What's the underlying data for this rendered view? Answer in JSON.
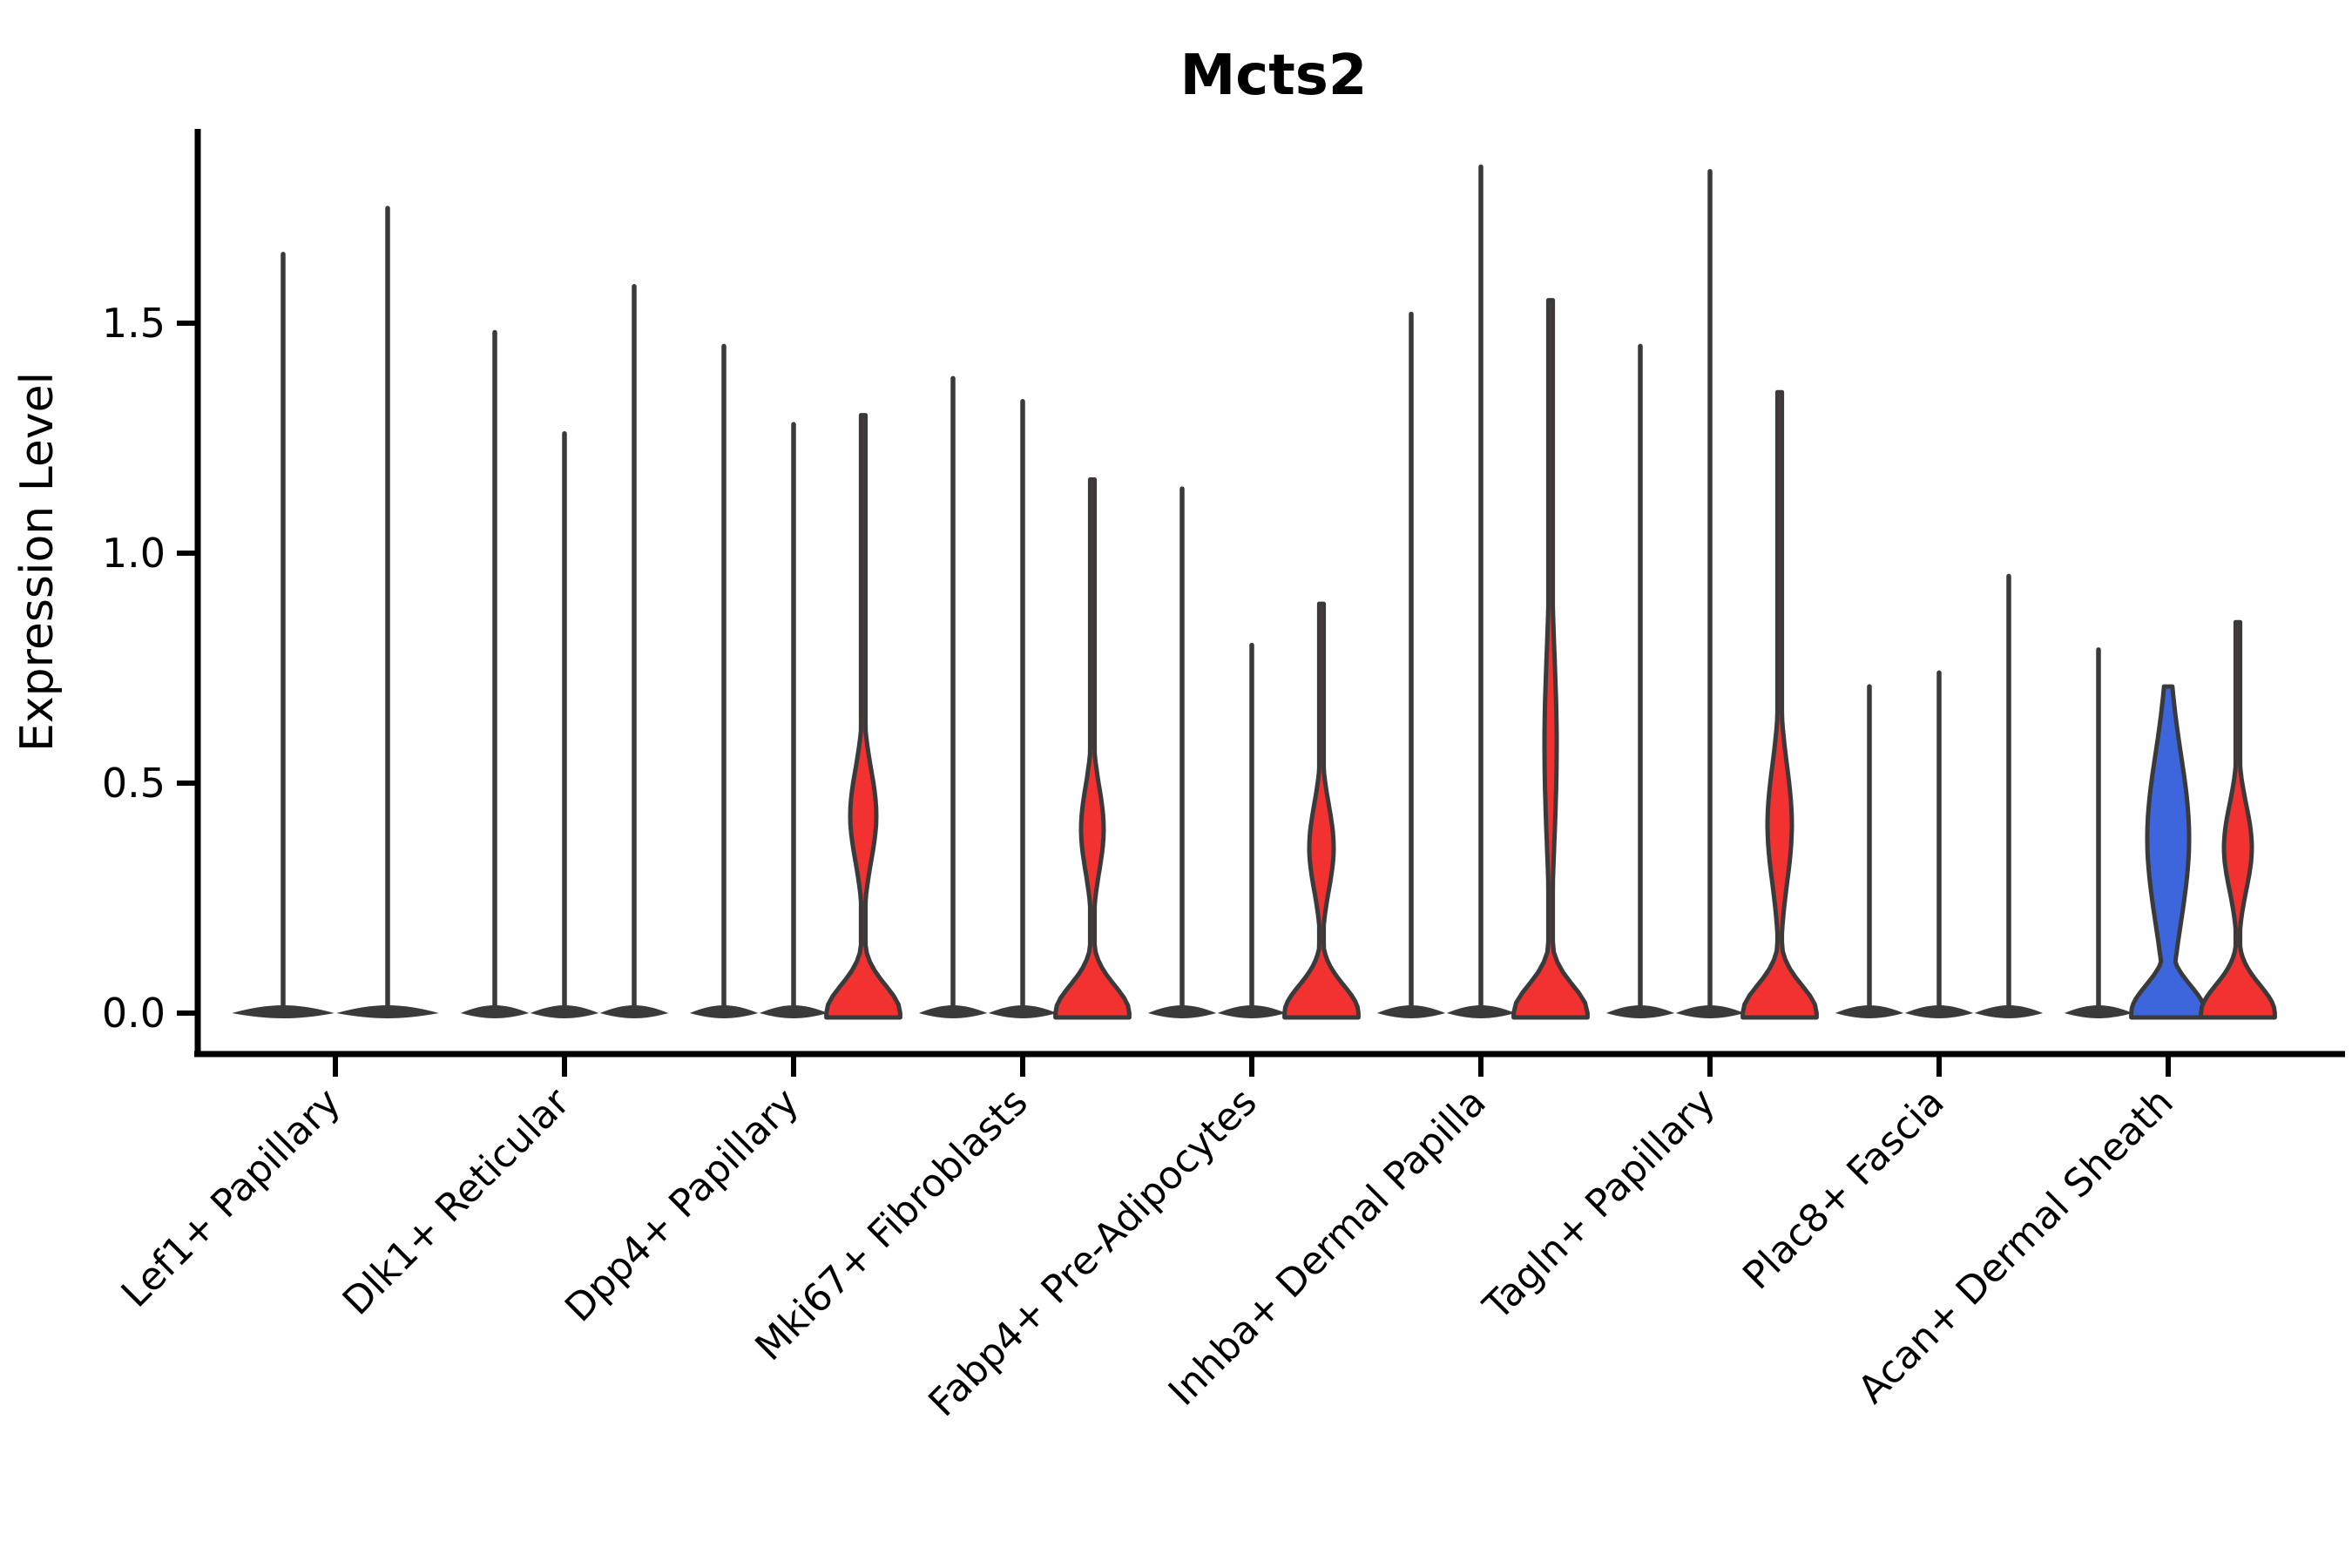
{
  "page": {
    "title": "Mcts2"
  },
  "chart_data": {
    "type": "violin",
    "title": "Mcts2",
    "xlabel": "",
    "ylabel": "Expression Level",
    "ylim": [
      0,
      1.92
    ],
    "grid": false,
    "legend": "none",
    "y_ticks": [
      0.0,
      0.5,
      1.0,
      1.5
    ],
    "y_tick_labels": [
      "0.0",
      "0.5",
      "1.0",
      "1.5"
    ],
    "categories": [
      "Lef1+ Papillary",
      "Dlk1+ Reticular",
      "Dpp4+ Papillary",
      "Mki67+ Fibroblasts",
      "Fabp4+ Pre-Adipocytes",
      "Inhba+ Dermal Papilla",
      "Tagln+ Papillary",
      "Plac8+ Fascia",
      "Acan+ Dermal Sheath"
    ],
    "colors": {
      "red": "#F23131",
      "blue": "#3D66DC",
      "outline": "#3A3A3A"
    },
    "groups": [
      {
        "label": "Lef1+ Papillary",
        "violins": [
          {
            "max": 1.65
          },
          {
            "max": 1.75
          }
        ]
      },
      {
        "label": "Dlk1+ Reticular",
        "violins": [
          {
            "max": 1.48
          },
          {
            "max": 1.26
          },
          {
            "max": 1.58
          }
        ]
      },
      {
        "label": "Dpp4+ Papillary",
        "violins": [
          {
            "max": 1.45
          },
          {
            "max": 1.28
          },
          {
            "max": 1.3,
            "fill": "red",
            "bulge": {
              "c": 0.43,
              "s": 0.14,
              "w": 15
            }
          }
        ]
      },
      {
        "label": "Mki67+ Fibroblasts",
        "violins": [
          {
            "max": 1.38
          },
          {
            "max": 1.33
          },
          {
            "max": 1.16,
            "fill": "red",
            "bulge": {
              "c": 0.4,
              "s": 0.13,
              "w": 13
            }
          }
        ]
      },
      {
        "label": "Fabp4+ Pre-Adipocytes",
        "violins": [
          {
            "max": 1.14
          },
          {
            "max": 0.8
          },
          {
            "max": 0.89,
            "fill": "red",
            "bulge": {
              "c": 0.36,
              "s": 0.13,
              "w": 14
            }
          }
        ]
      },
      {
        "label": "Inhba+ Dermal Papilla",
        "violins": [
          {
            "max": 1.52
          },
          {
            "max": 1.84
          },
          {
            "max": 1.55,
            "fill": "red",
            "bulge": {
              "c": 0.58,
              "s": 0.3,
              "w": 7
            }
          }
        ]
      },
      {
        "label": "Tagln+ Papillary",
        "violins": [
          {
            "max": 1.45
          },
          {
            "max": 1.83
          },
          {
            "max": 1.35,
            "fill": "red",
            "bulge": {
              "c": 0.41,
              "s": 0.18,
              "w": 14
            }
          }
        ]
      },
      {
        "label": "Plac8+ Fascia",
        "violins": [
          {
            "max": 0.71
          },
          {
            "max": 0.74
          },
          {
            "max": 0.95
          }
        ]
      },
      {
        "label": "Acan+ Dermal Sheath",
        "violins": [
          {
            "max": 0.79
          },
          {
            "max": 0.71,
            "fill": "blue",
            "bulge": {
              "c": 0.38,
              "s": 0.26,
              "w": 24
            }
          },
          {
            "max": 0.85,
            "fill": "red",
            "bulge": {
              "c": 0.36,
              "s": 0.13,
              "w": 16
            }
          }
        ]
      }
    ]
  }
}
